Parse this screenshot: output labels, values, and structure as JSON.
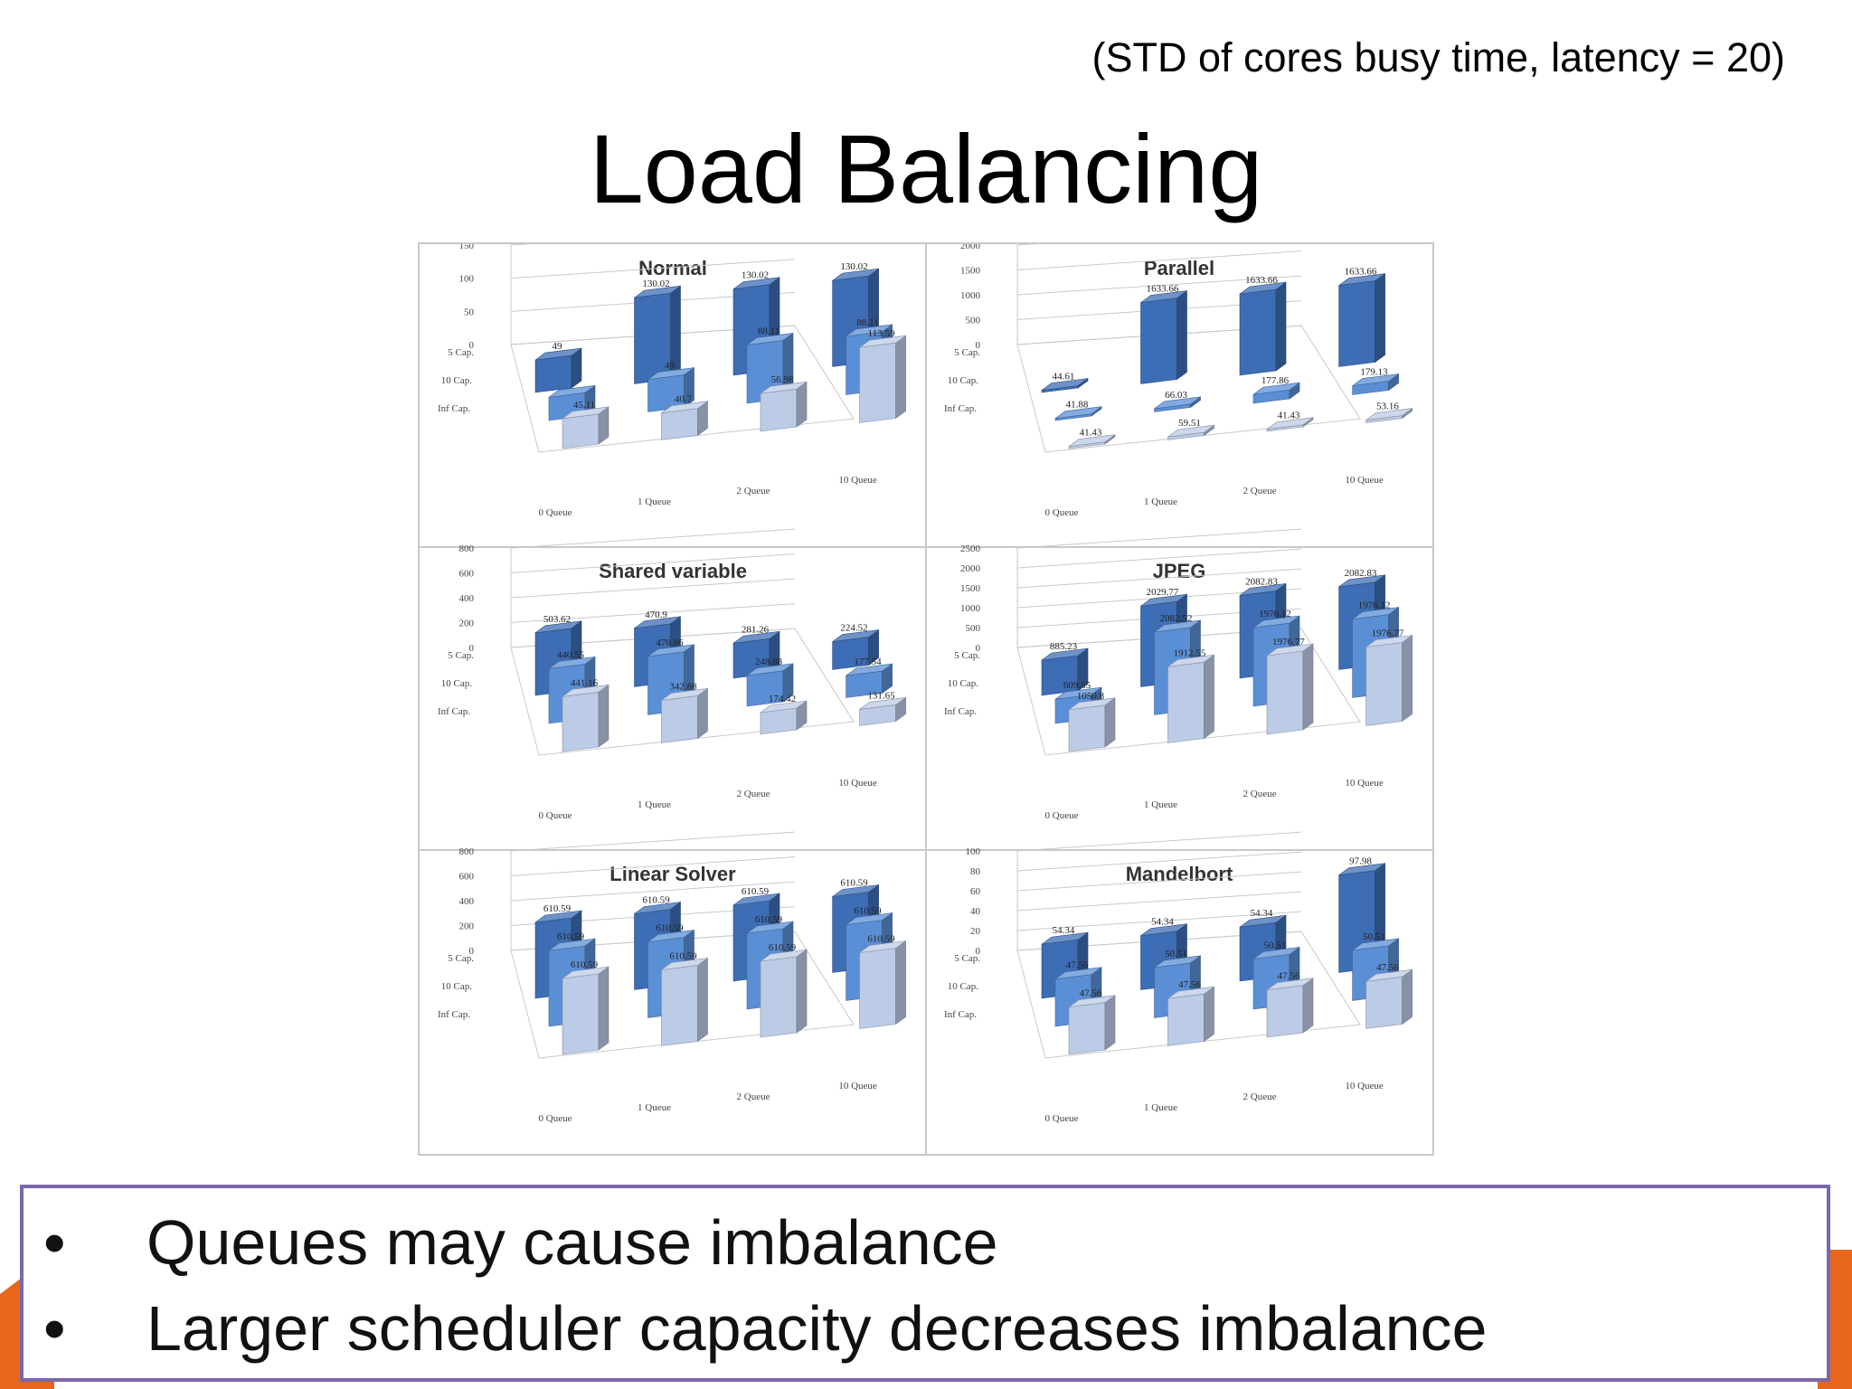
{
  "slide": {
    "subtitle": "(STD of cores busy time, latency = 20)",
    "title": "Load Balancing",
    "bullets": [
      {
        "marker": "•",
        "text": "Queues may cause imbalance"
      },
      {
        "marker": "•",
        "text": "Larger scheduler capacity decreases imbalance"
      }
    ]
  },
  "colors": {
    "accent_orange": "#e8661c",
    "box_border": "#7a68a8",
    "series_5cap": "#3d6db5",
    "series_10cap": "#5a8fd6",
    "series_infcap": "#bccbe6"
  },
  "chart_data": [
    {
      "type": "bar",
      "title": "Normal",
      "categories": [
        "0 Queue",
        "1 Queue",
        "2 Queue",
        "10 Queue"
      ],
      "depth_labels": [
        "5 Cap.",
        "10 Cap.",
        "Inf Cap."
      ],
      "y_ticks": [
        "0",
        "50",
        "100",
        "150"
      ],
      "ylim": [
        0,
        150
      ],
      "series": [
        {
          "name": "5 Cap.",
          "values": [
            49,
            130.02,
            130.02,
            130.02
          ],
          "labels": [
            "49",
            "130.02",
            "130.02",
            "130.02"
          ]
        },
        {
          "name": "10 Cap.",
          "values": [
            35,
            49,
            88.11,
            88.11
          ],
          "labels": [
            "",
            "49",
            "88.11",
            "88.11"
          ]
        },
        {
          "name": "Inf Cap.",
          "values": [
            45.11,
            40.7,
            56.98,
            113.59
          ],
          "labels": [
            "45.11",
            "40.7",
            "56.98",
            "113.59"
          ]
        }
      ]
    },
    {
      "type": "bar",
      "title": "Parallel",
      "categories": [
        "0 Queue",
        "1 Queue",
        "2 Queue",
        "10 Queue"
      ],
      "depth_labels": [
        "5 Cap.",
        "10 Cap.",
        "Inf Cap."
      ],
      "y_ticks": [
        "0",
        "500",
        "1000",
        "1500",
        "2000"
      ],
      "ylim": [
        0,
        2000
      ],
      "series": [
        {
          "name": "5 Cap.",
          "values": [
            44.61,
            1633.66,
            1633.66,
            1633.66
          ],
          "labels": [
            "44.61",
            "1633.66",
            "1633.66",
            "1633.66"
          ]
        },
        {
          "name": "10 Cap.",
          "values": [
            41.88,
            66.03,
            177.86,
            179.13
          ],
          "labels": [
            "41.88",
            "66.03",
            "177.86",
            "179.13"
          ]
        },
        {
          "name": "Inf Cap.",
          "values": [
            41.43,
            59.51,
            41.43,
            53.16
          ],
          "labels": [
            "41.43",
            "59.51",
            "41.43",
            "53.16"
          ]
        }
      ]
    },
    {
      "type": "bar",
      "title": "Shared variable",
      "categories": [
        "0 Queue",
        "1 Queue",
        "2 Queue",
        "10 Queue"
      ],
      "depth_labels": [
        "5 Cap.",
        "10 Cap.",
        "Inf Cap."
      ],
      "y_ticks": [
        "0",
        "200",
        "400",
        "600",
        "800"
      ],
      "ylim": [
        0,
        800
      ],
      "series": [
        {
          "name": "5 Cap.",
          "values": [
            503.62,
            470.9,
            281.26,
            224.52
          ],
          "labels": [
            "503.62",
            "470.9",
            "281.26",
            "224.52"
          ]
        },
        {
          "name": "10 Cap.",
          "values": [
            440.55,
            470.86,
            248.88,
            177.54
          ],
          "labels": [
            "440.55",
            "470.86",
            "248.88",
            "177.54"
          ]
        },
        {
          "name": "Inf Cap.",
          "values": [
            441.16,
            342.88,
            174.42,
            131.65
          ],
          "labels": [
            "441.16",
            "342.88",
            "174.42",
            "131.65"
          ]
        }
      ]
    },
    {
      "type": "bar",
      "title": "JPEG",
      "categories": [
        "0 Queue",
        "1 Queue",
        "2 Queue",
        "10 Queue"
      ],
      "depth_labels": [
        "5 Cap.",
        "10 Cap.",
        "Inf Cap."
      ],
      "y_ticks": [
        "0",
        "500",
        "1000",
        "1500",
        "2000",
        "2500"
      ],
      "ylim": [
        0,
        2500
      ],
      "series": [
        {
          "name": "5 Cap.",
          "values": [
            885.23,
            2029.77,
            2082.83,
            2082.83
          ],
          "labels": [
            "885.23",
            "2029.77",
            "2082.83",
            "2082.83"
          ]
        },
        {
          "name": "10 Cap.",
          "values": [
            609.55,
            2082.52,
            1976.12,
            1976.12
          ],
          "labels": [
            "609.55",
            "2082.52",
            "1976.12",
            "1976.12"
          ]
        },
        {
          "name": "Inf Cap.",
          "values": [
            1050.8,
            1912.55,
            1976.77,
            1976.77
          ],
          "labels": [
            "1050.8",
            "1912.55",
            "1976.77",
            "1976.77"
          ]
        }
      ]
    },
    {
      "type": "bar",
      "title": "Linear Solver",
      "categories": [
        "0 Queue",
        "1 Queue",
        "2 Queue",
        "10 Queue"
      ],
      "depth_labels": [
        "5 Cap.",
        "10 Cap.",
        "Inf Cap."
      ],
      "y_ticks": [
        "0",
        "200",
        "400",
        "600",
        "800"
      ],
      "ylim": [
        0,
        800
      ],
      "series": [
        {
          "name": "5 Cap.",
          "values": [
            610.59,
            610.59,
            610.59,
            610.59
          ],
          "labels": [
            "610.59",
            "610.59",
            "610.59",
            "610.59"
          ]
        },
        {
          "name": "10 Cap.",
          "values": [
            610.59,
            610.59,
            610.59,
            610.59
          ],
          "labels": [
            "610.59",
            "610.59",
            "610.59",
            "610.59"
          ]
        },
        {
          "name": "Inf Cap.",
          "values": [
            610.59,
            610.59,
            610.59,
            610.59
          ],
          "labels": [
            "610.59",
            "610.59",
            "610.59",
            "610.59"
          ]
        }
      ]
    },
    {
      "type": "bar",
      "title": "Mandelbort",
      "categories": [
        "0 Queue",
        "1 Queue",
        "2 Queue",
        "10 Queue"
      ],
      "depth_labels": [
        "5 Cap.",
        "10 Cap.",
        "Inf Cap."
      ],
      "y_ticks": [
        "0",
        "20",
        "40",
        "60",
        "80",
        "100"
      ],
      "ylim": [
        0,
        100
      ],
      "series": [
        {
          "name": "5 Cap.",
          "values": [
            54.34,
            54.34,
            54.34,
            97.98
          ],
          "labels": [
            "54.34",
            "54.34",
            "54.34",
            "97.98"
          ]
        },
        {
          "name": "10 Cap.",
          "values": [
            47.56,
            50.51,
            50.51,
            50.51
          ],
          "labels": [
            "47.56",
            "50.51",
            "50.51",
            "50.51"
          ]
        },
        {
          "name": "Inf Cap.",
          "values": [
            47.56,
            47.56,
            47.56,
            47.56
          ],
          "labels": [
            "47.56",
            "47.56",
            "47.56",
            "47.56"
          ]
        }
      ]
    }
  ]
}
